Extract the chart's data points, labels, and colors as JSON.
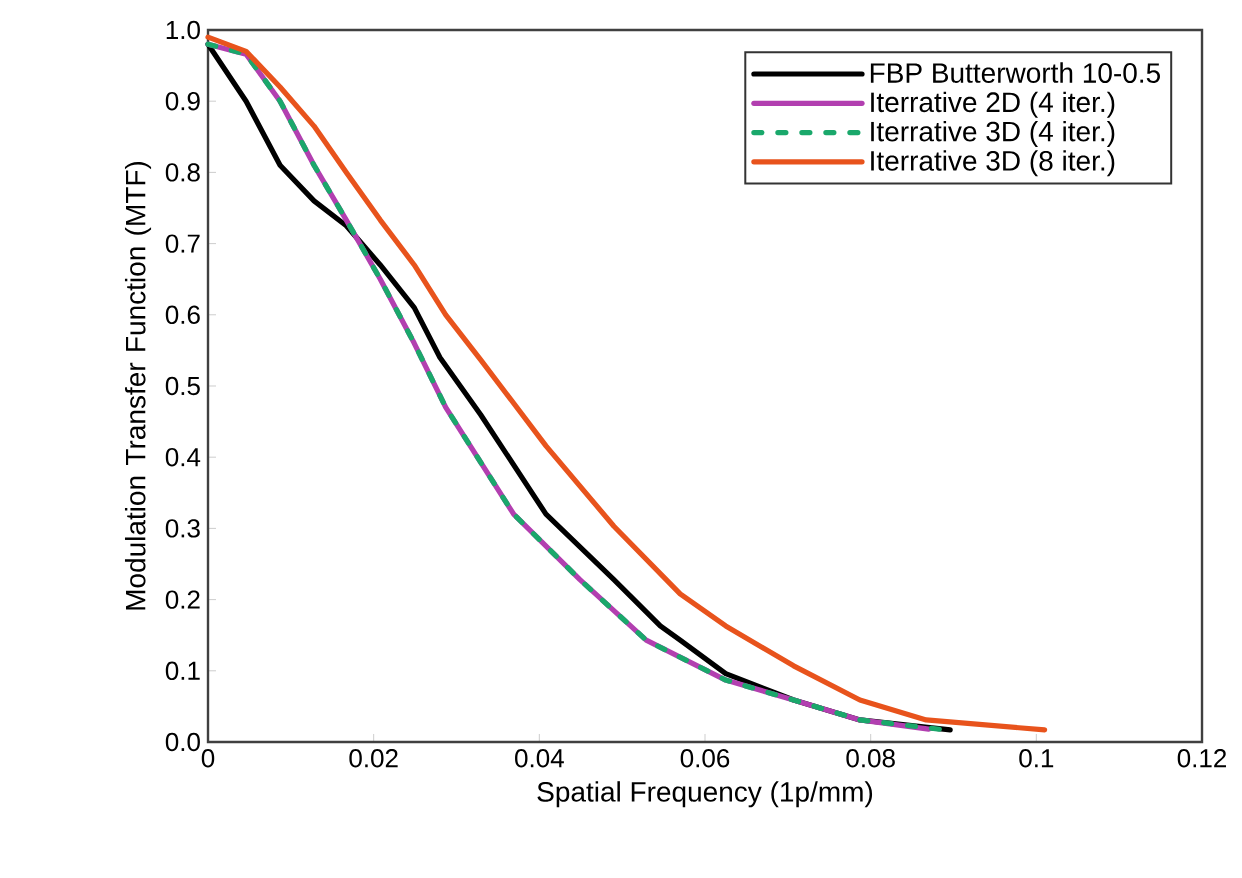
{
  "chart_data": {
    "type": "line",
    "xlabel": "Spatial Frequency (1p/mm)",
    "ylabel": "Modulation Transfer Function (MTF)",
    "xlim": [
      0,
      0.12
    ],
    "ylim": [
      0,
      1.0
    ],
    "xticks": [
      0,
      0.02,
      0.04,
      0.06,
      0.08,
      0.1,
      0.12
    ],
    "yticks": [
      {
        "value": 0,
        "label": "0.0"
      },
      0.1,
      0.2,
      0.3,
      0.4,
      0.5,
      0.6,
      0.7,
      0.8,
      0.9,
      {
        "value": 1,
        "label": "1.0"
      }
    ],
    "legend": "top right",
    "grid": false,
    "marker": "none",
    "series": [
      {
        "name": "FBP Butterworth 10-0.5",
        "color": "#000000",
        "line_style": "solid",
        "x": [
          0,
          0.0046,
          0.0087,
          0.0128,
          0.0167,
          0.0208,
          0.0249,
          0.028,
          0.0329,
          0.0408,
          0.049,
          0.0546,
          0.057,
          0.0625,
          0.0707,
          0.0787,
          0.0896
        ],
        "values": [
          0.98,
          0.9,
          0.81,
          0.76,
          0.725,
          0.67,
          0.61,
          0.54,
          0.46,
          0.32,
          0.228,
          0.163,
          0.143,
          0.096,
          0.059,
          0.031,
          0.017
        ]
      },
      {
        "name": "Iterrative 2D (4 iter.)",
        "color": "#b23fb0",
        "line_style": "solid",
        "x": [
          0,
          0.0046,
          0.0087,
          0.0128,
          0.0167,
          0.0208,
          0.0249,
          0.0287,
          0.0369,
          0.0449,
          0.0529,
          0.0625,
          0.0707,
          0.0787,
          0.087
        ],
        "values": [
          0.98,
          0.966,
          0.9,
          0.81,
          0.733,
          0.65,
          0.56,
          0.47,
          0.32,
          0.228,
          0.143,
          0.087,
          0.059,
          0.031,
          0.018
        ]
      },
      {
        "name": "Iterrative 3D (4 iter.)",
        "color": "#1aa86b",
        "line_style": "dashed",
        "x": [
          0,
          0.0046,
          0.0087,
          0.0128,
          0.0167,
          0.0208,
          0.0249,
          0.0287,
          0.0369,
          0.0449,
          0.0529,
          0.0625,
          0.0707,
          0.0787,
          0.089
        ],
        "values": [
          0.98,
          0.966,
          0.9,
          0.81,
          0.733,
          0.65,
          0.56,
          0.47,
          0.32,
          0.228,
          0.143,
          0.087,
          0.059,
          0.031,
          0.017
        ]
      },
      {
        "name": "Iterrative 3D (8 iter.)",
        "color": "#e8531c",
        "line_style": "solid",
        "x": [
          0,
          0.0046,
          0.0087,
          0.0128,
          0.0167,
          0.0208,
          0.0249,
          0.0287,
          0.0329,
          0.0408,
          0.049,
          0.057,
          0.0625,
          0.0707,
          0.0787,
          0.0867,
          0.101
        ],
        "values": [
          0.99,
          0.97,
          0.92,
          0.865,
          0.8,
          0.733,
          0.67,
          0.6,
          0.537,
          0.416,
          0.303,
          0.208,
          0.163,
          0.107,
          0.059,
          0.031,
          0.017
        ]
      }
    ]
  }
}
